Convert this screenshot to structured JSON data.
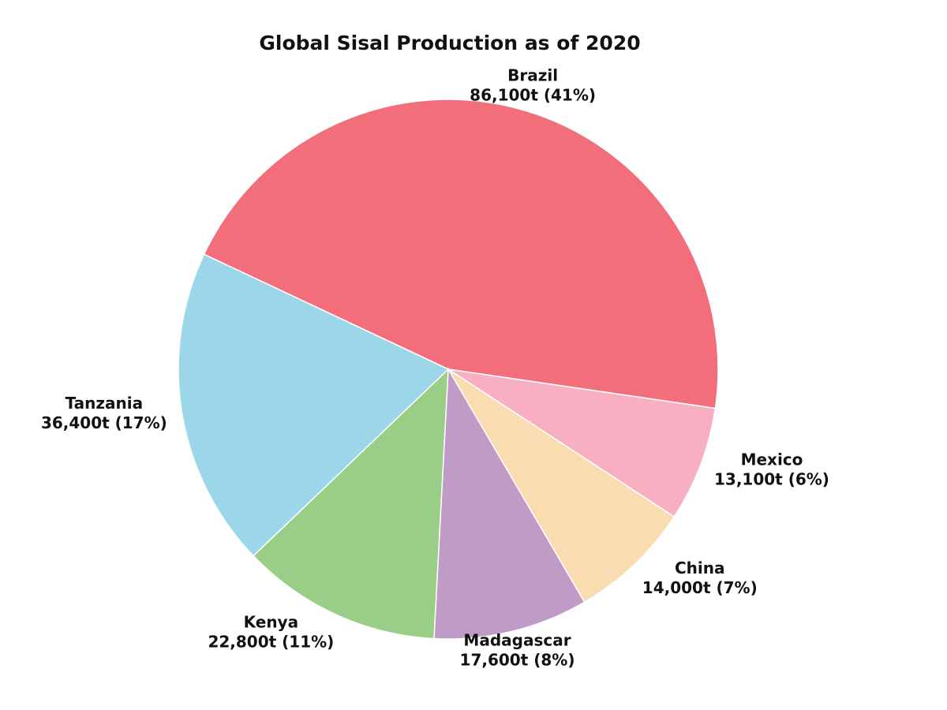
{
  "chart_data": {
    "type": "pie",
    "title": "Global Sisal Production as of 2020",
    "unit": "t",
    "slices": [
      {
        "label": "Brazil",
        "value": 86100,
        "display": "86,100t (41%)",
        "color": "#F16E7A"
      },
      {
        "label": "Mexico",
        "value": 13100,
        "display": "13,100t (6%)",
        "color": "#F8AFC1"
      },
      {
        "label": "China",
        "value": 14000,
        "display": "14,000t (7%)",
        "color": "#F9DDB1"
      },
      {
        "label": "Madagascar",
        "value": 17600,
        "display": "17,600t (8%)",
        "color": "#C09BC8"
      },
      {
        "label": "Kenya",
        "value": 22800,
        "display": "22,800t (11%)",
        "color": "#9ACD85"
      },
      {
        "label": "Tanzania",
        "value": 36400,
        "display": "36,400t (17%)",
        "color": "#9CD6E9"
      }
    ]
  }
}
